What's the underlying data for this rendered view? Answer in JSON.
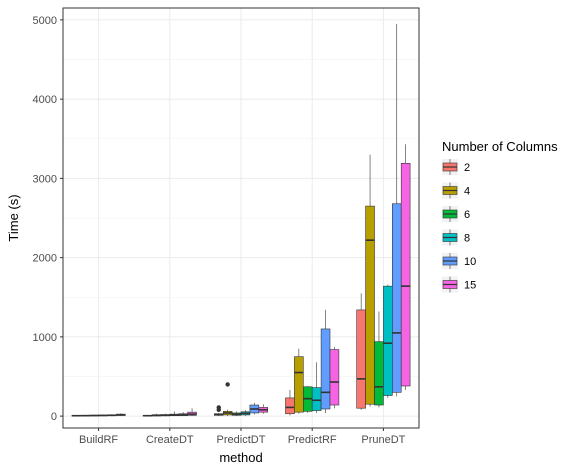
{
  "chart_data": {
    "type": "boxplot",
    "xlabel": "method",
    "ylabel": "Time (s)",
    "ylim": [
      -150,
      5150
    ],
    "yticks": [
      0,
      1000,
      2000,
      3000,
      4000,
      5000
    ],
    "categories": [
      "BuildRF",
      "CreateDT",
      "PredictDT",
      "PredictRF",
      "PruneDT"
    ],
    "legend": {
      "title": "Number of Columns",
      "position": "right"
    },
    "grid": true,
    "series": [
      {
        "name": "2",
        "color": "#F8766D",
        "boxes": [
          {
            "lower_whisker": 0,
            "q1": 2,
            "median": 5,
            "q3": 8,
            "upper_whisker": 12,
            "outliers": []
          },
          {
            "lower_whisker": 0,
            "q1": 2,
            "median": 5,
            "q3": 10,
            "upper_whisker": 15,
            "outliers": []
          },
          {
            "lower_whisker": 0,
            "q1": 10,
            "median": 20,
            "q3": 30,
            "upper_whisker": 40,
            "outliers": [
              80,
              110
            ]
          },
          {
            "lower_whisker": 10,
            "q1": 30,
            "median": 110,
            "q3": 230,
            "upper_whisker": 330,
            "outliers": []
          },
          {
            "lower_whisker": 80,
            "q1": 100,
            "median": 470,
            "q3": 1340,
            "upper_whisker": 1550,
            "outliers": []
          }
        ]
      },
      {
        "name": "4",
        "color": "#B79F00",
        "boxes": [
          {
            "lower_whisker": 0,
            "q1": 3,
            "median": 6,
            "q3": 10,
            "upper_whisker": 15,
            "outliers": []
          },
          {
            "lower_whisker": 0,
            "q1": 3,
            "median": 8,
            "q3": 18,
            "upper_whisker": 30,
            "outliers": []
          },
          {
            "lower_whisker": 0,
            "q1": 15,
            "median": 40,
            "q3": 60,
            "upper_whisker": 80,
            "outliers": [
              400
            ]
          },
          {
            "lower_whisker": 30,
            "q1": 50,
            "median": 550,
            "q3": 750,
            "upper_whisker": 850,
            "outliers": []
          },
          {
            "lower_whisker": 120,
            "q1": 150,
            "median": 2220,
            "q3": 2650,
            "upper_whisker": 3300,
            "outliers": []
          }
        ]
      },
      {
        "name": "6",
        "color": "#00BA38",
        "boxes": [
          {
            "lower_whisker": 0,
            "q1": 3,
            "median": 7,
            "q3": 12,
            "upper_whisker": 18,
            "outliers": []
          },
          {
            "lower_whisker": 0,
            "q1": 4,
            "median": 10,
            "q3": 20,
            "upper_whisker": 30,
            "outliers": []
          },
          {
            "lower_whisker": 0,
            "q1": 10,
            "median": 25,
            "q3": 40,
            "upper_whisker": 60,
            "outliers": []
          },
          {
            "lower_whisker": 40,
            "q1": 60,
            "median": 220,
            "q3": 370,
            "upper_whisker": 380,
            "outliers": []
          },
          {
            "lower_whisker": 110,
            "q1": 140,
            "median": 370,
            "q3": 940,
            "upper_whisker": 1320,
            "outliers": []
          }
        ]
      },
      {
        "name": "8",
        "color": "#00BFC4",
        "boxes": [
          {
            "lower_whisker": 0,
            "q1": 4,
            "median": 8,
            "q3": 14,
            "upper_whisker": 20,
            "outliers": []
          },
          {
            "lower_whisker": 0,
            "q1": 5,
            "median": 12,
            "q3": 25,
            "upper_whisker": 60,
            "outliers": []
          },
          {
            "lower_whisker": 0,
            "q1": 15,
            "median": 35,
            "q3": 55,
            "upper_whisker": 75,
            "outliers": []
          },
          {
            "lower_whisker": 40,
            "q1": 70,
            "median": 200,
            "q3": 360,
            "upper_whisker": 680,
            "outliers": []
          },
          {
            "lower_whisker": 230,
            "q1": 260,
            "median": 920,
            "q3": 1640,
            "upper_whisker": 1660,
            "outliers": []
          }
        ]
      },
      {
        "name": "10",
        "color": "#619CFF",
        "boxes": [
          {
            "lower_whisker": 0,
            "q1": 5,
            "median": 10,
            "q3": 17,
            "upper_whisker": 25,
            "outliers": []
          },
          {
            "lower_whisker": 0,
            "q1": 6,
            "median": 15,
            "q3": 30,
            "upper_whisker": 50,
            "outliers": []
          },
          {
            "lower_whisker": 20,
            "q1": 40,
            "median": 90,
            "q3": 140,
            "upper_whisker": 170,
            "outliers": []
          },
          {
            "lower_whisker": 40,
            "q1": 90,
            "median": 300,
            "q3": 1100,
            "upper_whisker": 1340,
            "outliers": []
          },
          {
            "lower_whisker": 250,
            "q1": 300,
            "median": 1050,
            "q3": 2680,
            "upper_whisker": 4950,
            "outliers": []
          }
        ]
      },
      {
        "name": "15",
        "color": "#F564E3",
        "boxes": [
          {
            "lower_whisker": 0,
            "q1": 8,
            "median": 15,
            "q3": 25,
            "upper_whisker": 35,
            "outliers": []
          },
          {
            "lower_whisker": 0,
            "q1": 10,
            "median": 25,
            "q3": 50,
            "upper_whisker": 100,
            "outliers": []
          },
          {
            "lower_whisker": 30,
            "q1": 50,
            "median": 80,
            "q3": 110,
            "upper_whisker": 150,
            "outliers": []
          },
          {
            "lower_whisker": 100,
            "q1": 140,
            "median": 430,
            "q3": 840,
            "upper_whisker": 870,
            "outliers": []
          },
          {
            "lower_whisker": 330,
            "q1": 380,
            "median": 1640,
            "q3": 3190,
            "upper_whisker": 3430,
            "outliers": []
          }
        ]
      }
    ]
  }
}
